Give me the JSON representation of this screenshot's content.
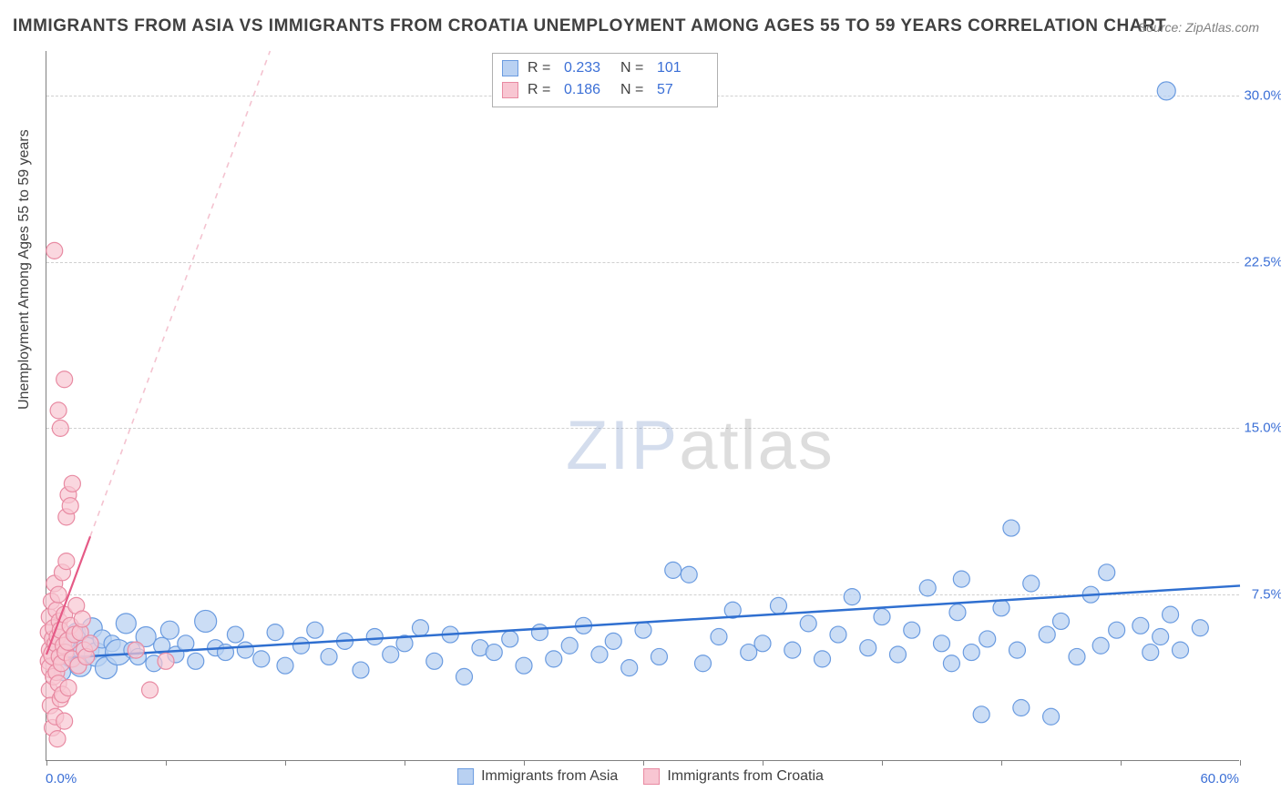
{
  "title": "IMMIGRANTS FROM ASIA VS IMMIGRANTS FROM CROATIA UNEMPLOYMENT AMONG AGES 55 TO 59 YEARS CORRELATION CHART",
  "source": "Source: ZipAtlas.com",
  "watermark_a": "ZIP",
  "watermark_b": "atlas",
  "yaxis_title": "Unemployment Among Ages 55 to 59 years",
  "chart": {
    "type": "scatter",
    "background_color": "#ffffff",
    "grid_color": "#d0d0d0",
    "axis_color": "#808080",
    "tick_font_color": "#3b6fd6",
    "tick_fontsize": 15,
    "title_fontsize": 19,
    "title_color": "#404040",
    "xlim": [
      0,
      60
    ],
    "ylim": [
      0,
      32
    ],
    "x_tick_positions": [
      0,
      6,
      12,
      18,
      24,
      30,
      36,
      42,
      48,
      54,
      60
    ],
    "y_ticks": [
      {
        "v": 7.5,
        "label": "7.5%"
      },
      {
        "v": 15.0,
        "label": "15.0%"
      },
      {
        "v": 22.5,
        "label": "22.5%"
      },
      {
        "v": 30.0,
        "label": "30.0%"
      }
    ],
    "x_min_label": "0.0%",
    "x_max_label": "60.0%",
    "series": [
      {
        "name": "Immigrants from Asia",
        "marker_fill": "#b9d1f2",
        "marker_stroke": "#6a9be0",
        "marker_opacity": 0.75,
        "marker_radius": 9,
        "trend_color": "#2f6fd0",
        "trend_width": 2.5,
        "trend_y0": 4.6,
        "trend_y60": 7.9,
        "R": "0.233",
        "N": "101",
        "points": [
          [
            0.5,
            5.1,
            9
          ],
          [
            0.8,
            4.0,
            9
          ],
          [
            1.0,
            5.4,
            9
          ],
          [
            1.2,
            4.6,
            9
          ],
          [
            1.5,
            5.8,
            10
          ],
          [
            1.7,
            4.3,
            12
          ],
          [
            2.0,
            5.0,
            14
          ],
          [
            2.3,
            6.0,
            11
          ],
          [
            2.5,
            4.8,
            13
          ],
          [
            2.8,
            5.5,
            10
          ],
          [
            3.0,
            4.2,
            12
          ],
          [
            3.3,
            5.3,
            9
          ],
          [
            3.6,
            4.9,
            14
          ],
          [
            4.0,
            6.2,
            11
          ],
          [
            4.3,
            5.0,
            9
          ],
          [
            4.6,
            4.7,
            9
          ],
          [
            5.0,
            5.6,
            11
          ],
          [
            5.4,
            4.4,
            9
          ],
          [
            5.8,
            5.2,
            9
          ],
          [
            6.2,
            5.9,
            10
          ],
          [
            6.5,
            4.8,
            9
          ],
          [
            7.0,
            5.3,
            9
          ],
          [
            7.5,
            4.5,
            9
          ],
          [
            8.0,
            6.3,
            12
          ],
          [
            8.5,
            5.1,
            9
          ],
          [
            9.0,
            4.9,
            9
          ],
          [
            9.5,
            5.7,
            9
          ],
          [
            10.0,
            5.0,
            9
          ],
          [
            10.8,
            4.6,
            9
          ],
          [
            11.5,
            5.8,
            9
          ],
          [
            12.0,
            4.3,
            9
          ],
          [
            12.8,
            5.2,
            9
          ],
          [
            13.5,
            5.9,
            9
          ],
          [
            14.2,
            4.7,
            9
          ],
          [
            15.0,
            5.4,
            9
          ],
          [
            15.8,
            4.1,
            9
          ],
          [
            16.5,
            5.6,
            9
          ],
          [
            17.3,
            4.8,
            9
          ],
          [
            18.0,
            5.3,
            9
          ],
          [
            18.8,
            6.0,
            9
          ],
          [
            19.5,
            4.5,
            9
          ],
          [
            20.3,
            5.7,
            9
          ],
          [
            21.0,
            3.8,
            9
          ],
          [
            21.8,
            5.1,
            9
          ],
          [
            22.5,
            4.9,
            9
          ],
          [
            23.3,
            5.5,
            9
          ],
          [
            24.0,
            4.3,
            9
          ],
          [
            24.8,
            5.8,
            9
          ],
          [
            25.5,
            4.6,
            9
          ],
          [
            26.3,
            5.2,
            9
          ],
          [
            27.0,
            6.1,
            9
          ],
          [
            27.8,
            4.8,
            9
          ],
          [
            28.5,
            5.4,
            9
          ],
          [
            29.3,
            4.2,
            9
          ],
          [
            30.0,
            5.9,
            9
          ],
          [
            30.8,
            4.7,
            9
          ],
          [
            31.5,
            8.6,
            9
          ],
          [
            32.3,
            8.4,
            9
          ],
          [
            33.0,
            4.4,
            9
          ],
          [
            33.8,
            5.6,
            9
          ],
          [
            34.5,
            6.8,
            9
          ],
          [
            35.3,
            4.9,
            9
          ],
          [
            36.0,
            5.3,
            9
          ],
          [
            36.8,
            7.0,
            9
          ],
          [
            37.5,
            5.0,
            9
          ],
          [
            38.3,
            6.2,
            9
          ],
          [
            39.0,
            4.6,
            9
          ],
          [
            39.8,
            5.7,
            9
          ],
          [
            40.5,
            7.4,
            9
          ],
          [
            41.3,
            5.1,
            9
          ],
          [
            42.0,
            6.5,
            9
          ],
          [
            42.8,
            4.8,
            9
          ],
          [
            43.5,
            5.9,
            9
          ],
          [
            44.3,
            7.8,
            9
          ],
          [
            45.0,
            5.3,
            9
          ],
          [
            45.5,
            4.4,
            9
          ],
          [
            45.8,
            6.7,
            9
          ],
          [
            46.0,
            8.2,
            9
          ],
          [
            46.5,
            4.9,
            9
          ],
          [
            47.0,
            2.1,
            9
          ],
          [
            47.3,
            5.5,
            9
          ],
          [
            48.0,
            6.9,
            9
          ],
          [
            48.5,
            10.5,
            9
          ],
          [
            48.8,
            5.0,
            9
          ],
          [
            49.0,
            2.4,
            9
          ],
          [
            49.5,
            8.0,
            9
          ],
          [
            50.3,
            5.7,
            9
          ],
          [
            50.5,
            2.0,
            9
          ],
          [
            51.0,
            6.3,
            9
          ],
          [
            51.8,
            4.7,
            9
          ],
          [
            52.5,
            7.5,
            9
          ],
          [
            53.0,
            5.2,
            9
          ],
          [
            53.3,
            8.5,
            9
          ],
          [
            53.8,
            5.9,
            9
          ],
          [
            55.0,
            6.1,
            9
          ],
          [
            55.5,
            4.9,
            9
          ],
          [
            56.0,
            5.6,
            9
          ],
          [
            56.3,
            30.2,
            10
          ],
          [
            56.5,
            6.6,
            9
          ],
          [
            57.0,
            5.0,
            9
          ],
          [
            58.0,
            6.0,
            9
          ]
        ]
      },
      {
        "name": "Immigrants from Croatia",
        "marker_fill": "#f8c6d2",
        "marker_stroke": "#e88aa2",
        "marker_opacity": 0.7,
        "marker_radius": 9,
        "trend_color": "#e55a86",
        "trend_width": 2.2,
        "trend_solid_xmax": 2.2,
        "trend_y0": 4.8,
        "trend_y60": 150.0,
        "dashed_color": "#f4c3d0",
        "R": "0.186",
        "N": "57",
        "points": [
          [
            0.1,
            4.5,
            9
          ],
          [
            0.1,
            5.8,
            9
          ],
          [
            0.15,
            3.2,
            9
          ],
          [
            0.15,
            6.5,
            9
          ],
          [
            0.2,
            5.0,
            10
          ],
          [
            0.2,
            2.5,
            9
          ],
          [
            0.25,
            7.2,
            9
          ],
          [
            0.25,
            4.2,
            11
          ],
          [
            0.3,
            5.5,
            9
          ],
          [
            0.3,
            1.5,
            9
          ],
          [
            0.35,
            6.0,
            9
          ],
          [
            0.35,
            3.8,
            9
          ],
          [
            0.4,
            8.0,
            9
          ],
          [
            0.4,
            4.8,
            12
          ],
          [
            0.45,
            5.3,
            9
          ],
          [
            0.45,
            2.0,
            9
          ],
          [
            0.5,
            6.8,
            9
          ],
          [
            0.5,
            4.0,
            9
          ],
          [
            0.55,
            1.0,
            9
          ],
          [
            0.55,
            5.6,
            9
          ],
          [
            0.6,
            7.5,
            9
          ],
          [
            0.6,
            3.5,
            9
          ],
          [
            0.65,
            4.7,
            9
          ],
          [
            0.65,
            6.3,
            9
          ],
          [
            0.7,
            2.8,
            9
          ],
          [
            0.7,
            5.9,
            9
          ],
          [
            0.75,
            4.4,
            9
          ],
          [
            0.8,
            8.5,
            9
          ],
          [
            0.8,
            3.0,
            9
          ],
          [
            0.85,
            5.2,
            9
          ],
          [
            0.9,
            6.6,
            9
          ],
          [
            0.9,
            1.8,
            9
          ],
          [
            0.95,
            4.9,
            9
          ],
          [
            1.0,
            9.0,
            9
          ],
          [
            1.0,
            11.0,
            9
          ],
          [
            1.1,
            5.4,
            10
          ],
          [
            1.1,
            12.0,
            9
          ],
          [
            1.1,
            3.3,
            9
          ],
          [
            1.2,
            6.1,
            9
          ],
          [
            1.2,
            11.5,
            9
          ],
          [
            1.3,
            4.6,
            9
          ],
          [
            1.3,
            12.5,
            9
          ],
          [
            1.4,
            5.7,
            9
          ],
          [
            1.5,
            7.0,
            9
          ],
          [
            1.6,
            4.3,
            9
          ],
          [
            1.7,
            5.8,
            9
          ],
          [
            1.8,
            6.4,
            9
          ],
          [
            1.9,
            5.0,
            9
          ],
          [
            2.0,
            4.7,
            9
          ],
          [
            2.2,
            5.3,
            9
          ],
          [
            0.7,
            15.0,
            9
          ],
          [
            0.6,
            15.8,
            9
          ],
          [
            0.9,
            17.2,
            9
          ],
          [
            0.4,
            23.0,
            9
          ],
          [
            4.5,
            5.0,
            9
          ],
          [
            5.2,
            3.2,
            9
          ],
          [
            6.0,
            4.5,
            9
          ]
        ]
      }
    ]
  },
  "legend_bottom": [
    {
      "swatch_fill": "#b9d1f2",
      "swatch_stroke": "#6a9be0",
      "label": "Immigrants from Asia"
    },
    {
      "swatch_fill": "#f8c6d2",
      "swatch_stroke": "#e88aa2",
      "label": "Immigrants from Croatia"
    }
  ],
  "legend_top": {
    "r_label": "R =",
    "n_label": "N =",
    "rows": [
      {
        "swatch_fill": "#b9d1f2",
        "swatch_stroke": "#6a9be0",
        "R": "0.233",
        "N": "101"
      },
      {
        "swatch_fill": "#f8c6d2",
        "swatch_stroke": "#e88aa2",
        "R": "0.186",
        "N": "57"
      }
    ]
  }
}
